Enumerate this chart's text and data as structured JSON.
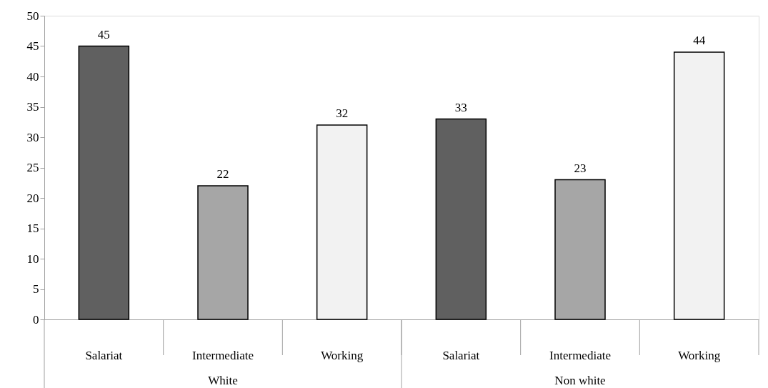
{
  "chart_data": {
    "type": "bar",
    "categories": [
      "Salariat",
      "Intermediate",
      "Working",
      "Salariat",
      "Intermediate",
      "Working"
    ],
    "values": [
      45,
      22,
      32,
      33,
      23,
      44
    ],
    "colors": [
      "#606060",
      "#a6a6a6",
      "#f2f2f2",
      "#606060",
      "#a6a6a6",
      "#f2f2f2"
    ],
    "annotations": [
      "White",
      "Non white"
    ],
    "ylim": [
      0,
      50
    ],
    "yticks": [
      0,
      5,
      10,
      15,
      20,
      25,
      30,
      35,
      40,
      45,
      50
    ],
    "data_labels": true,
    "grid": false
  }
}
